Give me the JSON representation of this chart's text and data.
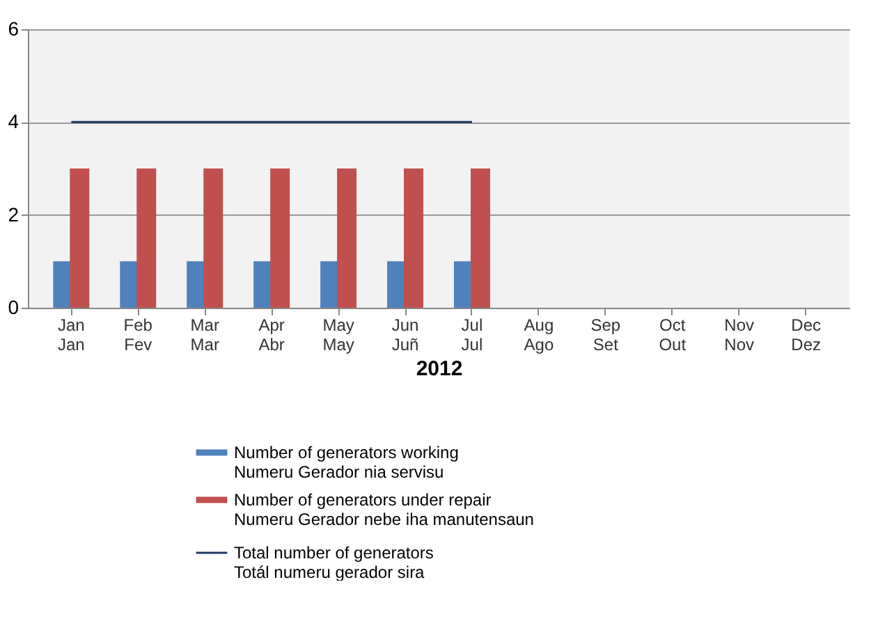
{
  "chart_data": {
    "type": "bar",
    "xlabel": "2012",
    "categories": [
      "Jan\nJan",
      "Feb\nFev",
      "Mar\nMar",
      "Apr\nAbr",
      "May\nMay",
      "Jun\nJuñ",
      "Jul\nJul",
      "Aug\nAgo",
      "Sep\nSet",
      "Oct\nOut",
      "Nov\nNov",
      "Dec\nDez"
    ],
    "series": [
      {
        "name": "Number of generators working\nNumeru Gerador nia servisu",
        "color": "#4f81bd",
        "values": [
          1,
          1,
          1,
          1,
          1,
          1,
          1,
          null,
          null,
          null,
          null,
          null
        ]
      },
      {
        "name": "Number of generators under repair\nNumeru Gerador nebe iha manutensaun",
        "color": "#c0504d",
        "values": [
          3,
          3,
          3,
          3,
          3,
          3,
          3,
          null,
          null,
          null,
          null,
          null
        ]
      },
      {
        "name": "Total number of generators\nTotál numeru gerador sira",
        "color": "#1f3864",
        "type": "line",
        "values": [
          4,
          4,
          4,
          4,
          4,
          4,
          4,
          null,
          null,
          null,
          null,
          null
        ]
      }
    ],
    "ylim": [
      0,
      6
    ],
    "yticks": [
      0,
      2,
      4,
      6
    ],
    "grid": "y",
    "legend": "bottom"
  }
}
